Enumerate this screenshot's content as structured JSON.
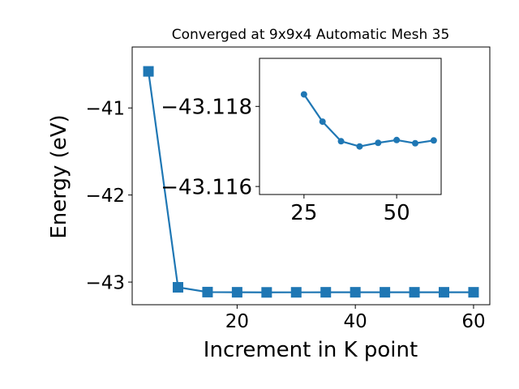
{
  "chart_data": [
    {
      "type": "line",
      "title": "Converged at 9x9x4 Automatic Mesh 35",
      "xlabel": "Increment in K point",
      "ylabel": "Energy (eV)",
      "x": [
        5,
        10,
        15,
        20,
        25,
        30,
        35,
        40,
        45,
        50,
        55,
        60
      ],
      "series": [
        {
          "values": [
            -40.58,
            -43.06,
            -43.115,
            -43.117,
            -43.1183,
            -43.1176,
            -43.1171,
            -43.117,
            -43.1171,
            -43.1172,
            -43.1171,
            -43.1172
          ]
        }
      ],
      "xlim": [
        2.25,
        62.75
      ],
      "ylim": [
        -43.26,
        -40.3
      ],
      "xticks": [
        20,
        40,
        60
      ],
      "yticks": [
        -41,
        -42,
        -43
      ],
      "xtick_labels": [
        "20",
        "40",
        "60"
      ],
      "ytick_labels": [
        "−41",
        "−42",
        "−43"
      ],
      "marker": "square",
      "color": "#1f77b4",
      "grid": false
    },
    {
      "type": "line",
      "inset": true,
      "x": [
        25,
        30,
        35,
        40,
        45,
        50,
        55,
        60
      ],
      "series": [
        {
          "values": [
            -43.1183,
            -43.11762,
            -43.11713,
            -43.117,
            -43.11709,
            -43.11716,
            -43.11708,
            -43.11715
          ]
        }
      ],
      "xlim": [
        13,
        62
      ],
      "ylim": [
        -43.1158,
        -43.1192
      ],
      "xticks": [
        25,
        50
      ],
      "yticks": [
        -43.118,
        -43.116
      ],
      "xtick_labels": [
        "25",
        "50"
      ],
      "ytick_labels": [
        "−43.118",
        "−43.116"
      ],
      "marker": "circle",
      "color": "#1f77b4",
      "grid": false
    }
  ]
}
